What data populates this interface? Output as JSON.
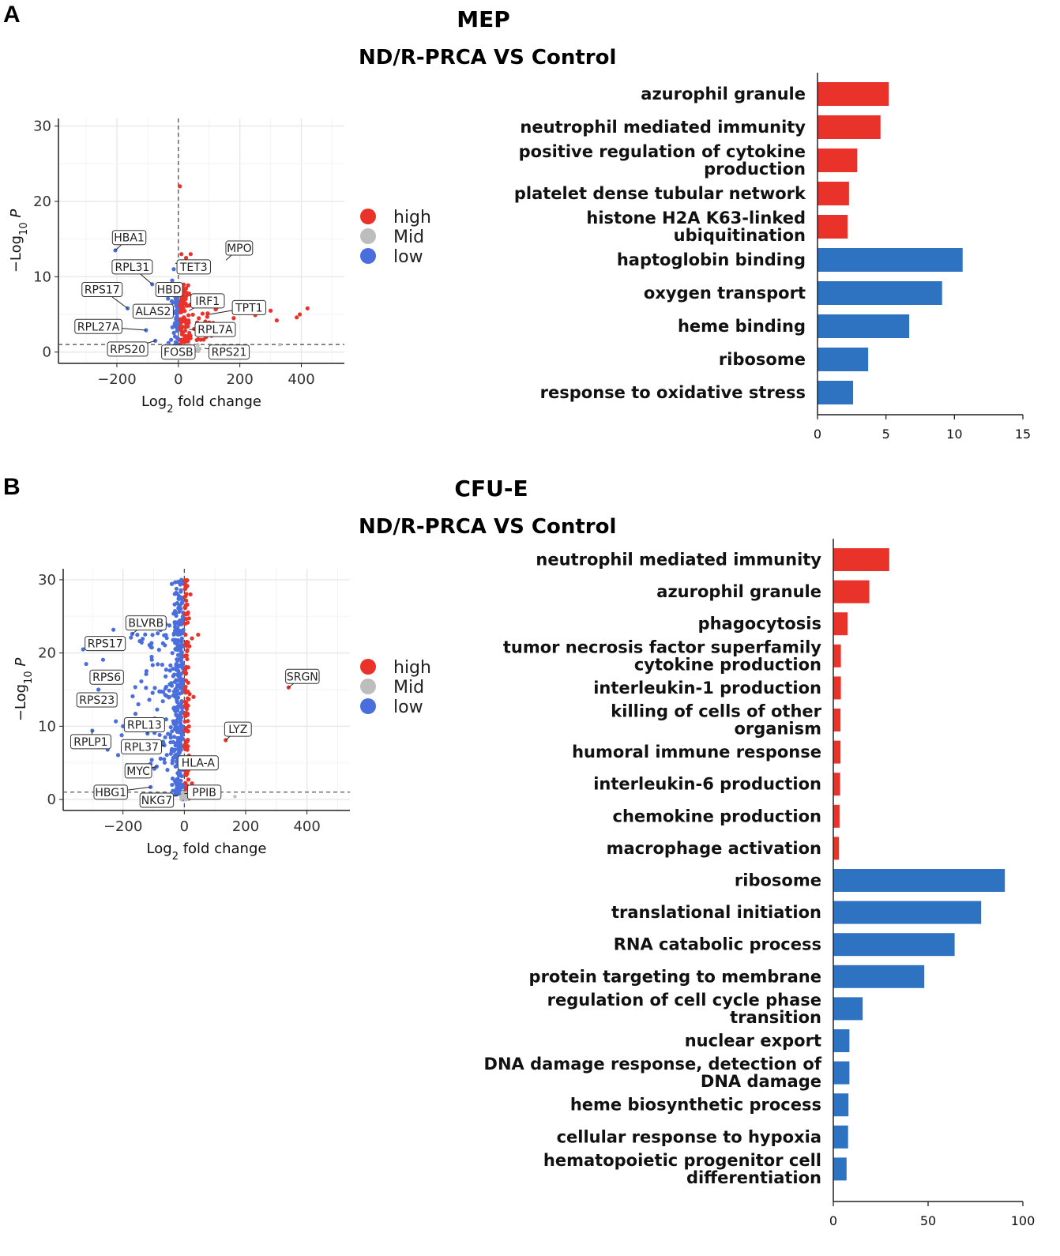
{
  "colors": {
    "high": "#e8322a",
    "mid": "#bdbdbd",
    "low": "#4a6fdc",
    "bar_up": "#e8322a",
    "bar_down": "#2e73c2"
  },
  "panels": [
    {
      "letter": "A",
      "title": "MEP",
      "subtitle": "ND/R-PRCA VS Control",
      "volcano": {
        "type": "scatter",
        "xlabel": "Log2 fold change",
        "ylabel": "−Log10 P",
        "xlim": [
          -390,
          540
        ],
        "ylim": [
          -1.5,
          31
        ],
        "xticks": [
          -200,
          0,
          200,
          400
        ],
        "yticks": [
          0,
          10,
          20,
          30
        ],
        "threshold_y": 1.0,
        "legend": [
          "high",
          "Mid",
          "low"
        ],
        "labels": [
          {
            "text": "HBA1",
            "x": -205,
            "y": 13.5,
            "lx": -160,
            "ly": 15.2
          },
          {
            "text": "MPO",
            "x": 155,
            "y": 12.2,
            "lx": 198,
            "ly": 13.8
          },
          {
            "text": "RPL31",
            "x": -85,
            "y": 9.0,
            "lx": -150,
            "ly": 11.3
          },
          {
            "text": "TET3",
            "x": -10,
            "y": 11.8,
            "lx": 50,
            "ly": 11.3
          },
          {
            "text": "RPS17",
            "x": -165,
            "y": 5.8,
            "lx": -248,
            "ly": 8.3
          },
          {
            "text": "HBD",
            "x": -35,
            "y": 7.8,
            "lx": -30,
            "ly": 8.3
          },
          {
            "text": "IRF1",
            "x": 35,
            "y": 5.5,
            "lx": 95,
            "ly": 6.8
          },
          {
            "text": "TPT1",
            "x": 100,
            "y": 5.0,
            "lx": 230,
            "ly": 5.9
          },
          {
            "text": "ALAS2",
            "x": -30,
            "y": 5.0,
            "lx": -82,
            "ly": 5.4
          },
          {
            "text": "RPL27A",
            "x": -105,
            "y": 2.9,
            "lx": -260,
            "ly": 3.4
          },
          {
            "text": "RPL7A",
            "x": 35,
            "y": 3.0,
            "lx": 120,
            "ly": 3.0
          },
          {
            "text": "RPS20",
            "x": -75,
            "y": 1.5,
            "lx": -165,
            "ly": 0.4
          },
          {
            "text": "FOSB",
            "x": 0,
            "y": 0.6,
            "lx": 0,
            "ly": 0.0
          },
          {
            "text": "RPS21",
            "x": 85,
            "y": 0.5,
            "lx": 165,
            "ly": 0.0
          }
        ]
      },
      "bars": {
        "type": "bar",
        "xlim": [
          0,
          15
        ],
        "xticks": [
          0,
          5,
          10,
          15
        ],
        "categories": [
          "azurophil granule",
          "neutrophil mediated immunity",
          "positive regulation of cytokine production",
          "platelet dense tubular network",
          "histone H2A K63-linked ubiquitination",
          "haptoglobin binding",
          "oxygen transport",
          "heme binding",
          "ribosome",
          "response to oxidative stress"
        ],
        "values": [
          5.2,
          4.6,
          2.9,
          2.3,
          2.2,
          10.6,
          9.1,
          6.7,
          3.7,
          2.6
        ],
        "direction": [
          "up",
          "up",
          "up",
          "up",
          "up",
          "down",
          "down",
          "down",
          "down",
          "down"
        ]
      }
    },
    {
      "letter": "B",
      "title": "CFU-E",
      "subtitle": "ND/R-PRCA VS Control",
      "volcano": {
        "type": "scatter",
        "xlabel": "Log2 fold change",
        "ylabel": "−Log10 P",
        "xlim": [
          -395,
          540
        ],
        "ylim": [
          -1.5,
          31.5
        ],
        "xticks": [
          -200,
          0,
          200,
          400
        ],
        "yticks": [
          0,
          10,
          20,
          30
        ],
        "threshold_y": 1.0,
        "legend": [
          "high",
          "Mid",
          "low"
        ],
        "labels": [
          {
            "text": "BLVRB",
            "x": -170,
            "y": 22.6,
            "lx": -125,
            "ly": 24.1
          },
          {
            "text": "RPS17",
            "x": -290,
            "y": 21.8,
            "lx": -258,
            "ly": 21.3
          },
          {
            "text": "SRGN",
            "x": 340,
            "y": 15.3,
            "lx": 385,
            "ly": 16.8
          },
          {
            "text": "RPS6",
            "x": -270,
            "y": 17.0,
            "lx": -253,
            "ly": 16.7
          },
          {
            "text": "RPS23",
            "x": -290,
            "y": 13.2,
            "lx": -285,
            "ly": 13.6
          },
          {
            "text": "RPL13",
            "x": -120,
            "y": 9.0,
            "lx": -130,
            "ly": 10.2
          },
          {
            "text": "LYZ",
            "x": 135,
            "y": 8.1,
            "lx": 175,
            "ly": 9.6
          },
          {
            "text": "RPLP1",
            "x": -300,
            "y": 9.4,
            "lx": -305,
            "ly": 7.9
          },
          {
            "text": "RPL37",
            "x": -65,
            "y": 7.4,
            "lx": -140,
            "ly": 7.2
          },
          {
            "text": "HLA-A",
            "x": -5,
            "y": 5.6,
            "lx": 45,
            "ly": 5.0
          },
          {
            "text": "MYC",
            "x": -90,
            "y": 4.5,
            "lx": -150,
            "ly": 3.9
          },
          {
            "text": "HBG1",
            "x": -110,
            "y": 1.7,
            "lx": -240,
            "ly": 1.0
          },
          {
            "text": "PPIB",
            "x": 0,
            "y": 0.8,
            "lx": 65,
            "ly": 1.0
          },
          {
            "text": "NKG7",
            "x": -20,
            "y": 0.6,
            "lx": -90,
            "ly": -0.1
          }
        ]
      },
      "bars": {
        "type": "bar",
        "xlim": [
          0,
          100
        ],
        "xticks": [
          0,
          50,
          100
        ],
        "categories": [
          "neutrophil mediated immunity",
          "azurophil granule",
          "phagocytosis",
          "tumor necrosis factor superfamily cytokine production",
          "interleukin-1 production",
          "killing of cells of other organism",
          "humoral immune response",
          "interleukin-6 production",
          "chemokine production",
          "macrophage activation",
          "ribosome",
          "translational initiation",
          "RNA catabolic process",
          "protein targeting to membrane",
          "regulation of cell cycle phase transition",
          "nuclear export",
          "DNA damage response, detection of DNA damage",
          "heme biosynthetic process",
          "cellular response to hypoxia",
          "hematopoietic progenitor cell differentiation"
        ],
        "values": [
          29.5,
          19,
          7.5,
          4,
          4,
          3.8,
          3.8,
          3.6,
          3.3,
          3,
          90.5,
          78,
          64,
          48,
          15.5,
          8.5,
          8.5,
          8,
          7.8,
          7
        ],
        "direction": [
          "up",
          "up",
          "up",
          "up",
          "up",
          "up",
          "up",
          "up",
          "up",
          "up",
          "down",
          "down",
          "down",
          "down",
          "down",
          "down",
          "down",
          "down",
          "down",
          "down"
        ]
      }
    }
  ]
}
